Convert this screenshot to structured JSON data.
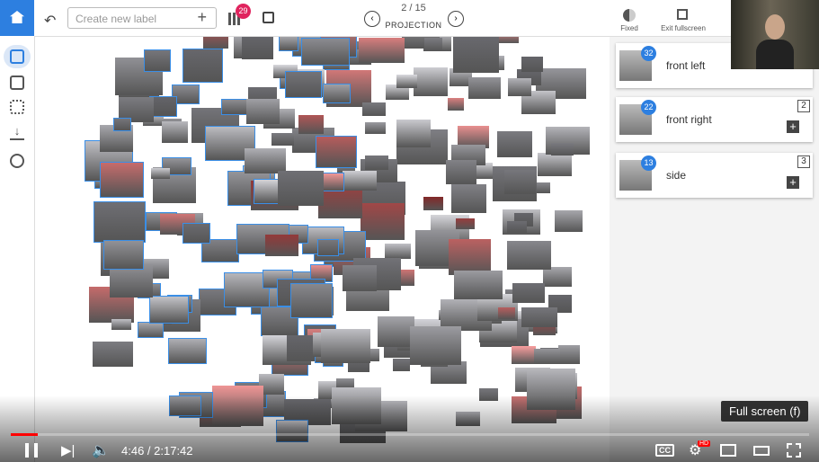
{
  "toolbar": {
    "label_placeholder": "Create new label",
    "badge": 29,
    "page": "2 / 15",
    "mode": "PROJECTION",
    "fixed": "Fixed",
    "exit": "Exit fullscreen"
  },
  "labels": [
    {
      "name": "front left",
      "count": 32
    },
    {
      "name": "front right",
      "count": 22,
      "shortcut": 2
    },
    {
      "name": "side",
      "count": 13,
      "shortcut": 3
    }
  ],
  "player": {
    "tooltip": "Full screen (f)",
    "time": "4:46 / 2:17:42",
    "cc": "CC",
    "hd": "HD"
  }
}
